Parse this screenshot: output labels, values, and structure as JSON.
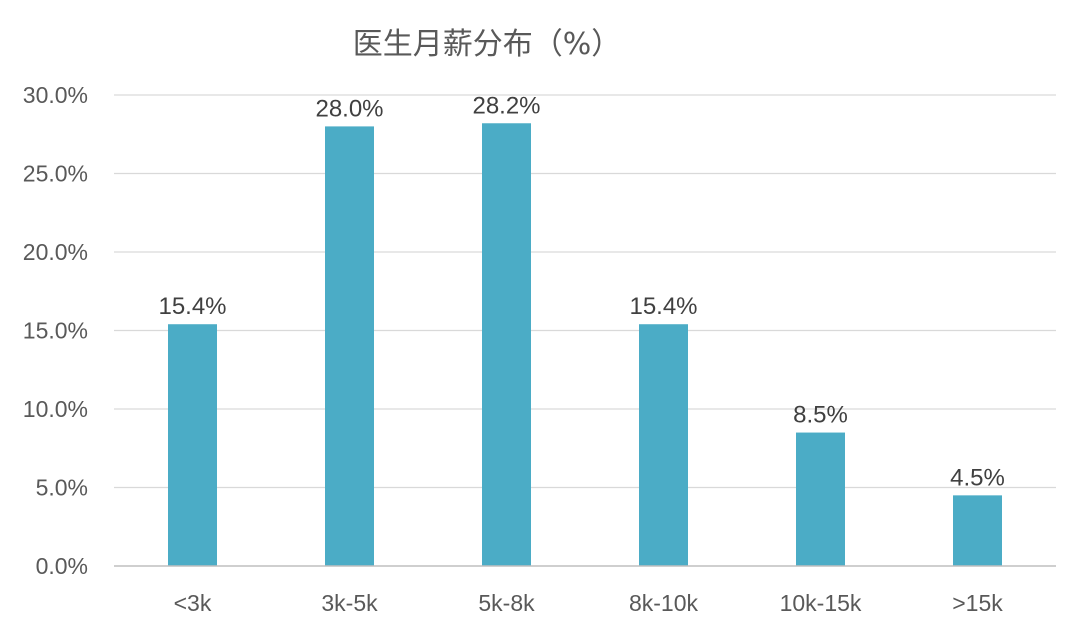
{
  "chart_data": {
    "type": "bar",
    "title": "医生月薪分布（%）",
    "categories": [
      "<3k",
      "3k-5k",
      "5k-8k",
      "8k-10k",
      "10k-15k",
      ">15k"
    ],
    "values": [
      15.4,
      28.0,
      28.2,
      15.4,
      8.5,
      4.5
    ],
    "value_labels": [
      "15.4%",
      "28.0%",
      "28.2%",
      "15.4%",
      "8.5%",
      "4.5%"
    ],
    "ylim": [
      0,
      30
    ],
    "yticks": [
      0,
      5,
      10,
      15,
      20,
      25,
      30
    ],
    "ytick_labels": [
      "0.0%",
      "5.0%",
      "10.0%",
      "15.0%",
      "20.0%",
      "25.0%",
      "30.0%"
    ],
    "xlabel": "",
    "ylabel": "",
    "grid": true,
    "legend": "none",
    "bar_color": "#4bacc6"
  }
}
